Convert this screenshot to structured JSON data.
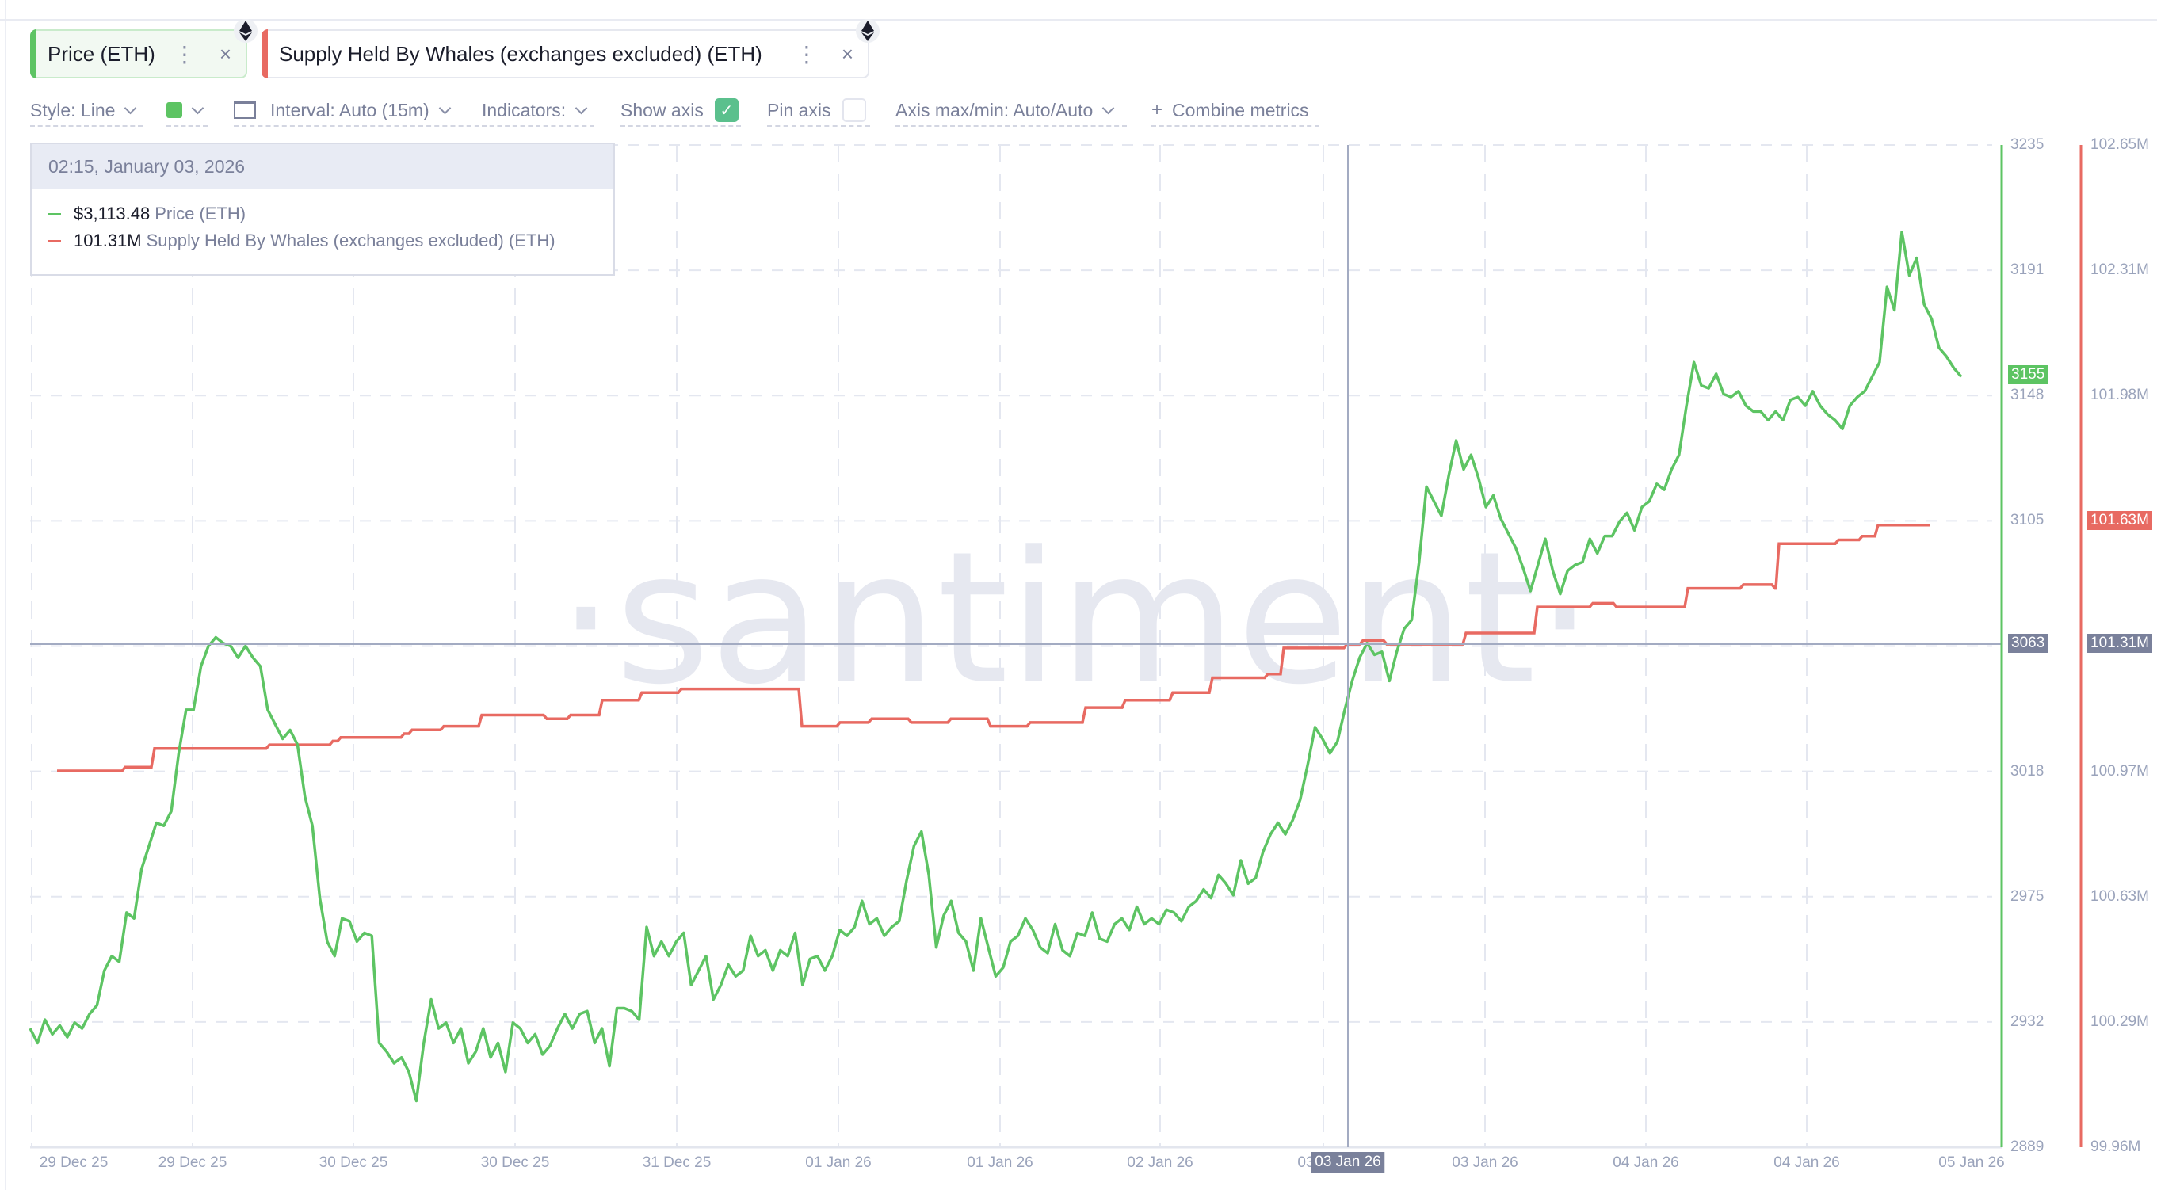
{
  "tabs": [
    {
      "label": "Price (ETH)",
      "color": "#5dc463",
      "asset_icon": "ethereum-icon"
    },
    {
      "label": "Supply Held By Whales (exchanges excluded) (ETH)",
      "color": "#e86a62",
      "asset_icon": "ethereum-icon"
    }
  ],
  "toolbar": {
    "style": "Style: Line",
    "color_swatch": "#5dc463",
    "interval": "Interval: Auto (15m)",
    "indicators": "Indicators:",
    "show_axis": "Show axis",
    "show_axis_checked": true,
    "pin_axis": "Pin axis",
    "pin_axis_checked": false,
    "axis_maxmin": "Axis max/min: Auto/Auto",
    "combine": "Combine metrics"
  },
  "tooltip": {
    "datetime": "02:15, January 03, 2026",
    "rows": [
      {
        "value": "$3,113.48",
        "name": "Price (ETH)",
        "color": "#5dc463"
      },
      {
        "value": "101.31M",
        "name": "Supply Held By Whales (exchanges excluded) (ETH)",
        "color": "#e86a62"
      }
    ]
  },
  "watermark": "·santiment·",
  "crosshair": {
    "x_label": "03 Jan 26",
    "price_label": "3063",
    "supply_label": "101.31M"
  },
  "last_values": {
    "price": "3155",
    "supply": "101.63M"
  },
  "chart_data": {
    "type": "line",
    "title": "Price (ETH) vs Supply Held By Whales (exchanges excluded) (ETH)",
    "xlabel": "",
    "x_ticks": [
      "29 Dec 25",
      "29 Dec 25",
      "30 Dec 25",
      "30 Dec 25",
      "31 Dec 25",
      "01 Jan 26",
      "01 Jan 26",
      "02 Jan 26",
      "03 Jan 26",
      "03 Jan 26",
      "04 Jan 26",
      "04 Jan 26",
      "05 Jan 26"
    ],
    "y_left": {
      "label": "Price (ETH)",
      "ticks": [
        3235,
        3191,
        3148,
        3105,
        3063,
        3018,
        2975,
        2932,
        2889
      ],
      "range": [
        2889,
        3235
      ]
    },
    "y_right": {
      "label": "Supply Held By Whales (exchanges excluded) (ETH)",
      "ticks": [
        "102.65M",
        "102.31M",
        "101.98M",
        "101.63M",
        "101.31M",
        "100.97M",
        "100.63M",
        "100.29M",
        "99.96M"
      ],
      "range": [
        99.96,
        102.65
      ]
    },
    "grid": true,
    "legend_position": "top",
    "series": [
      {
        "name": "Price (ETH)",
        "axis": "left",
        "color": "#5dc463",
        "x_start": 38,
        "x_end": 2475,
        "values": [
          2930,
          2925,
          2933,
          2928,
          2931,
          2927,
          2932,
          2930,
          2935,
          2938,
          2950,
          2955,
          2953,
          2970,
          2968,
          2985,
          2993,
          3001,
          3000,
          3005,
          3025,
          3040,
          3040,
          3055,
          3062,
          3065,
          3063,
          3062,
          3058,
          3062,
          3058,
          3055,
          3040,
          3035,
          3030,
          3033,
          3028,
          3010,
          3000,
          2975,
          2960,
          2955,
          2968,
          2967,
          2960,
          2963,
          2962,
          2925,
          2922,
          2918,
          2920,
          2915,
          2905,
          2925,
          2940,
          2930,
          2932,
          2925,
          2930,
          2918,
          2922,
          2930,
          2920,
          2925,
          2915,
          2932,
          2930,
          2925,
          2928,
          2921,
          2924,
          2930,
          2935,
          2930,
          2935,
          2936,
          2925,
          2930,
          2917,
          2937,
          2937,
          2936,
          2933,
          2965,
          2955,
          2960,
          2955,
          2960,
          2963,
          2945,
          2950,
          2955,
          2940,
          2945,
          2952,
          2948,
          2950,
          2962,
          2955,
          2957,
          2950,
          2957,
          2955,
          2963,
          2945,
          2954,
          2955,
          2950,
          2955,
          2964,
          2962,
          2965,
          2974,
          2966,
          2968,
          2962,
          2965,
          2967,
          2981,
          2993,
          2998,
          2983,
          2958,
          2969,
          2974,
          2963,
          2960,
          2950,
          2968,
          2958,
          2948,
          2951,
          2960,
          2962,
          2968,
          2964,
          2958,
          2956,
          2966,
          2957,
          2955,
          2963,
          2962,
          2970,
          2961,
          2960,
          2966,
          2968,
          2964,
          2972,
          2966,
          2968,
          2966,
          2971,
          2970,
          2967,
          2972,
          2974,
          2978,
          2975,
          2983,
          2980,
          2976,
          2988,
          2980,
          2982,
          2991,
          2997,
          3001,
          2997,
          3002,
          3009,
          3021,
          3034,
          3030,
          3025,
          3029,
          3040,
          3050,
          3058,
          3063,
          3059,
          3060,
          3050,
          3060,
          3068,
          3071,
          3091,
          3117,
          3112,
          3107,
          3121,
          3133,
          3123,
          3128,
          3120,
          3110,
          3114,
          3106,
          3101,
          3096,
          3089,
          3081,
          3090,
          3099,
          3088,
          3080,
          3088,
          3090,
          3091,
          3099,
          3094,
          3100,
          3100,
          3105,
          3108,
          3102,
          3110,
          3112,
          3118,
          3116,
          3123,
          3128,
          3145,
          3160,
          3152,
          3151,
          3156,
          3149,
          3148,
          3150,
          3145,
          3143,
          3143,
          3140,
          3143,
          3140,
          3147,
          3148,
          3145,
          3150,
          3145,
          3142,
          3140,
          3137,
          3145,
          3148,
          3150,
          3155,
          3160,
          3186,
          3178,
          3205,
          3190,
          3196,
          3180,
          3175,
          3165,
          3162,
          3158,
          3155
        ]
      },
      {
        "name": "Supply Held By Whales (exchanges excluded) (ETH)",
        "axis": "right",
        "color": "#e86a62",
        "step": true,
        "points": [
          [
            72,
            100.97
          ],
          [
            150,
            100.97
          ],
          [
            158,
            100.98
          ],
          [
            190,
            100.98
          ],
          [
            195,
            101.03
          ],
          [
            330,
            101.03
          ],
          [
            340,
            101.04
          ],
          [
            420,
            101.05
          ],
          [
            430,
            101.06
          ],
          [
            510,
            101.07
          ],
          [
            520,
            101.08
          ],
          [
            560,
            101.09
          ],
          [
            600,
            101.09
          ],
          [
            608,
            101.12
          ],
          [
            680,
            101.12
          ],
          [
            690,
            101.11
          ],
          [
            720,
            101.12
          ],
          [
            760,
            101.16
          ],
          [
            800,
            101.16
          ],
          [
            810,
            101.18
          ],
          [
            850,
            101.18
          ],
          [
            860,
            101.19
          ],
          [
            1000,
            101.19
          ],
          [
            1012,
            101.09
          ],
          [
            1050,
            101.09
          ],
          [
            1060,
            101.1
          ],
          [
            1100,
            101.11
          ],
          [
            1150,
            101.1
          ],
          [
            1200,
            101.11
          ],
          [
            1240,
            101.11
          ],
          [
            1250,
            101.09
          ],
          [
            1290,
            101.09
          ],
          [
            1300,
            101.1
          ],
          [
            1370,
            101.14
          ],
          [
            1420,
            101.16
          ],
          [
            1480,
            101.18
          ],
          [
            1530,
            101.22
          ],
          [
            1600,
            101.23
          ],
          [
            1620,
            101.3
          ],
          [
            1680,
            101.3
          ],
          [
            1700,
            101.31
          ],
          [
            1720,
            101.32
          ],
          [
            1750,
            101.31
          ],
          [
            1770,
            101.31
          ],
          [
            1810,
            101.31
          ],
          [
            1850,
            101.34
          ],
          [
            1920,
            101.34
          ],
          [
            1940,
            101.41
          ],
          [
            2000,
            101.41
          ],
          [
            2010,
            101.42
          ],
          [
            2040,
            101.41
          ],
          [
            2100,
            101.41
          ],
          [
            2130,
            101.46
          ],
          [
            2170,
            101.46
          ],
          [
            2200,
            101.47
          ],
          [
            2240,
            101.46
          ],
          [
            2245,
            101.58
          ],
          [
            2290,
            101.58
          ],
          [
            2320,
            101.59
          ],
          [
            2350,
            101.6
          ],
          [
            2370,
            101.63
          ],
          [
            2435,
            101.63
          ]
        ]
      }
    ]
  }
}
